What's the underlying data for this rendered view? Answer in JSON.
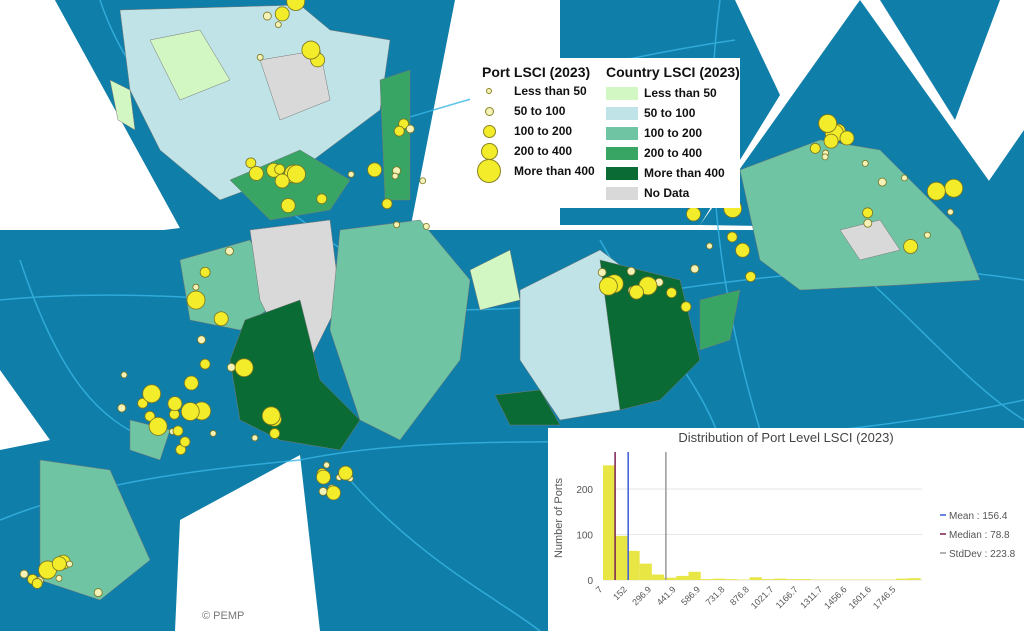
{
  "colors": {
    "ocean": "#0f7ea8",
    "route": "#38b6e6",
    "port": "#f2ec2a",
    "lt50": "#d3f7c3",
    "c50_100": "#bfe3e6",
    "c100_200": "#6fc4a3",
    "c200_400": "#38a565",
    "gt400": "#0b6b35",
    "nodata": "#d9d9d9"
  },
  "port_legend": {
    "title": "Port LSCI (2023)",
    "items": [
      "Less than 50",
      "50 to 100",
      "100 to 200",
      "200 to 400",
      "More than 400"
    ]
  },
  "country_legend": {
    "title": "Country LSCI (2023)",
    "items": [
      "Less than 50",
      "50 to 100",
      "100 to 200",
      "200 to 400",
      "More than 400",
      "No Data"
    ]
  },
  "copyright": "© PEMP",
  "chart_data": {
    "type": "bar",
    "title": "Distribution of Port Level LSCI (2023)",
    "xlabel": "",
    "ylabel": "Number of Ports",
    "x_ticks": [
      "7",
      "152",
      "296.9",
      "441.9",
      "586.9",
      "731.8",
      "876.8",
      "1021.7",
      "1166.7",
      "1311.7",
      "1456.6",
      "1601.6",
      "1746.5"
    ],
    "y_ticks": [
      "0",
      "100",
      "200"
    ],
    "ylim": [
      0,
      260
    ],
    "xlim": [
      7,
      1900
    ],
    "bin_width": 72.5,
    "values": [
      252,
      97,
      64,
      36,
      12,
      5,
      9,
      18,
      2,
      3,
      2,
      1,
      6,
      2,
      3,
      2,
      2,
      1,
      1,
      1,
      1,
      1,
      1,
      1,
      3,
      4
    ],
    "lines": [
      {
        "name": "Mean : 156.4",
        "value": 156.4,
        "color": "#3a5bd9"
      },
      {
        "name": "Median : 78.8",
        "value": 78.8,
        "color": "#7a1f4f"
      },
      {
        "name": "StdDev : 223.8",
        "value": 380.2,
        "color": "#999999"
      }
    ],
    "legend_position": "right"
  }
}
